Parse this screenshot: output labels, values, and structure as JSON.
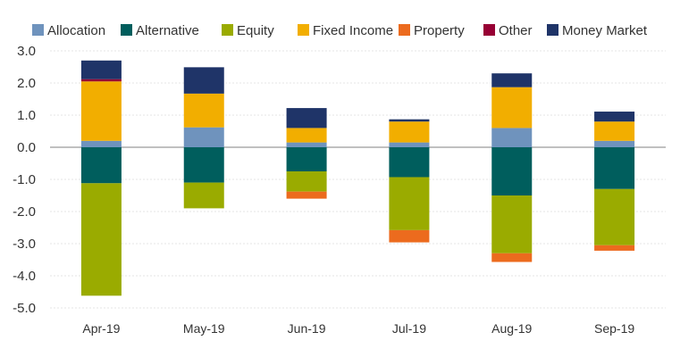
{
  "chart_data": {
    "type": "bar",
    "stacked": true,
    "title": "",
    "xlabel": "",
    "ylabel": "",
    "ylim": [
      -5.0,
      3.0
    ],
    "yticks": [
      3.0,
      2.0,
      1.0,
      0.0,
      -1.0,
      -2.0,
      -3.0,
      -4.0,
      -5.0
    ],
    "ytick_labels": [
      "3.0",
      "2.0",
      "1.0",
      "0.0",
      "-1.0",
      "-2.0",
      "-3.0",
      "-4.0",
      "-5.0"
    ],
    "grid": true,
    "legend_position": "top",
    "categories": [
      "Apr-19",
      "May-19",
      "Jun-19",
      "Jul-19",
      "Aug-19",
      "Sep-19"
    ],
    "series": [
      {
        "name": "Allocation",
        "color": "#6f93bd",
        "values": [
          0.2,
          0.62,
          0.15,
          0.15,
          0.6,
          0.2
        ]
      },
      {
        "name": "Alternative",
        "color": "#005e5d",
        "values": [
          -1.12,
          -1.1,
          -0.75,
          -0.93,
          -1.5,
          -1.3
        ]
      },
      {
        "name": "Equity",
        "color": "#9aab00",
        "values": [
          -3.5,
          -0.8,
          -0.63,
          -1.65,
          -1.8,
          -1.75
        ]
      },
      {
        "name": "Fixed Income",
        "color": "#f2ae00",
        "values": [
          1.85,
          1.05,
          0.45,
          0.65,
          1.27,
          0.6
        ]
      },
      {
        "name": "Property",
        "color": "#ec6b1e",
        "values": [
          0.0,
          0.0,
          -0.22,
          -0.38,
          -0.27,
          -0.17
        ]
      },
      {
        "name": "Other",
        "color": "#970034",
        "values": [
          0.07,
          0.0,
          0.0,
          0.0,
          0.0,
          0.0
        ]
      },
      {
        "name": "Money Market",
        "color": "#1f3468",
        "values": [
          0.58,
          0.82,
          0.62,
          0.07,
          0.43,
          0.31
        ]
      }
    ]
  }
}
